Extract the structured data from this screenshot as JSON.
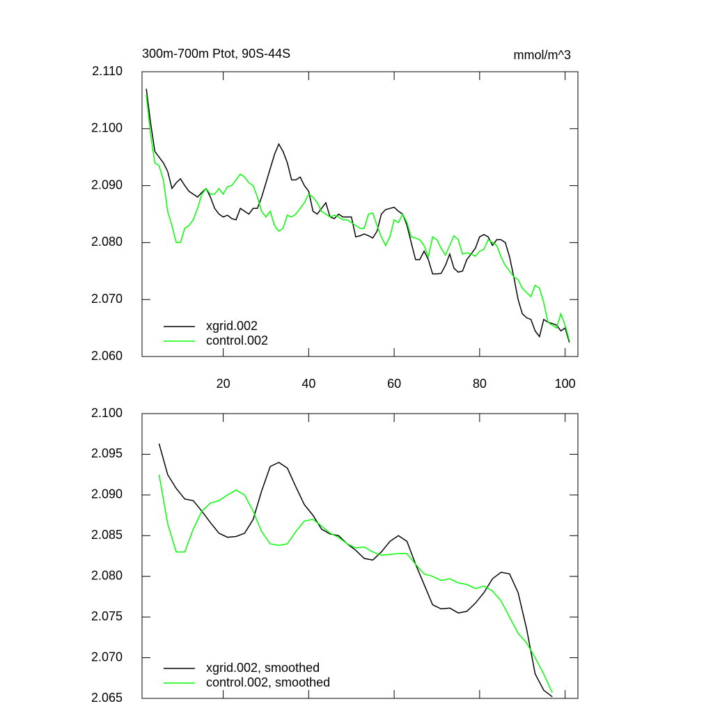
{
  "chart_data": [
    {
      "type": "line",
      "title": "300m-700m Ptot, 90S-44S",
      "units": "mmol/m^3",
      "x": [
        2,
        3,
        4,
        5,
        6,
        7,
        8,
        9,
        10,
        11,
        12,
        13,
        14,
        15,
        16,
        17,
        18,
        19,
        20,
        21,
        22,
        23,
        24,
        25,
        26,
        27,
        28,
        29,
        30,
        31,
        32,
        33,
        34,
        35,
        36,
        37,
        38,
        39,
        40,
        41,
        42,
        43,
        44,
        45,
        46,
        47,
        48,
        49,
        50,
        51,
        52,
        53,
        54,
        55,
        56,
        57,
        58,
        59,
        60,
        61,
        62,
        63,
        64,
        65,
        66,
        67,
        68,
        69,
        70,
        71,
        72,
        73,
        74,
        75,
        76,
        77,
        78,
        79,
        80,
        81,
        82,
        83,
        84,
        85,
        86,
        87,
        88,
        89,
        90,
        91,
        92,
        93,
        94,
        95,
        96,
        97,
        98,
        99,
        100,
        101
      ],
      "xlim": [
        1,
        103
      ],
      "xticks": [
        20,
        40,
        60,
        80,
        100
      ],
      "ylim": [
        2.06,
        2.11
      ],
      "yticks": [
        {
          "value": 2.06,
          "label": "2.060"
        },
        {
          "value": 2.07,
          "label": "2.070"
        },
        {
          "value": 2.08,
          "label": "2.080"
        },
        {
          "value": 2.09,
          "label": "2.090"
        },
        {
          "value": 2.1,
          "label": "2.100"
        },
        {
          "value": 2.11,
          "label": "2.110"
        }
      ],
      "series": [
        {
          "name": "xgrid.002",
          "color": "#000000",
          "values": [
            2.107,
            2.101,
            2.096,
            2.095,
            2.094,
            2.0925,
            2.0895,
            2.0905,
            2.0912,
            2.09,
            2.089,
            2.0885,
            2.088,
            2.0888,
            2.0895,
            2.088,
            2.086,
            2.085,
            2.0845,
            2.0848,
            2.0842,
            2.084,
            2.086,
            2.0855,
            2.085,
            2.086,
            2.086,
            2.088,
            2.0905,
            2.093,
            2.0955,
            2.0973,
            2.096,
            2.094,
            2.091,
            2.091,
            2.0915,
            2.09,
            2.089,
            2.0855,
            2.085,
            2.086,
            2.087,
            2.0845,
            2.0842,
            2.085,
            2.0845,
            2.0845,
            2.0845,
            2.081,
            2.0812,
            2.0815,
            2.0812,
            2.0808,
            2.082,
            2.085,
            2.0858,
            2.086,
            2.0862,
            2.0855,
            2.085,
            2.083,
            2.08,
            2.077,
            2.077,
            2.0785,
            2.077,
            2.0745,
            2.0745,
            2.0746,
            2.076,
            2.078,
            2.0755,
            2.0748,
            2.075,
            2.077,
            2.078,
            2.079,
            2.081,
            2.0814,
            2.081,
            2.0795,
            2.0805,
            2.0805,
            2.08,
            2.0775,
            2.074,
            2.07,
            2.0675,
            2.0668,
            2.0665,
            2.0645,
            2.0635,
            2.0665,
            2.066,
            2.0658,
            2.0655,
            2.0645,
            2.065,
            2.0625
          ]
        },
        {
          "name": "control.002",
          "color": "#00ff00",
          "values": [
            2.106,
            2.099,
            2.094,
            2.0935,
            2.091,
            2.0855,
            2.083,
            2.08,
            2.08,
            2.0825,
            2.083,
            2.084,
            2.086,
            2.0885,
            2.0895,
            2.0885,
            2.0885,
            2.0895,
            2.0885,
            2.0898,
            2.09,
            2.091,
            2.092,
            2.0915,
            2.0905,
            2.09,
            2.088,
            2.0855,
            2.0845,
            2.0855,
            2.083,
            2.082,
            2.0825,
            2.0848,
            2.0845,
            2.085,
            2.086,
            2.087,
            2.0885,
            2.088,
            2.087,
            2.0855,
            2.085,
            2.0845,
            2.0848,
            2.0845,
            2.084,
            2.084,
            2.0835,
            2.083,
            2.0825,
            2.0825,
            2.085,
            2.0852,
            2.083,
            2.081,
            2.0795,
            2.081,
            2.084,
            2.0835,
            2.085,
            2.0835,
            2.081,
            2.0808,
            2.0805,
            2.0795,
            2.0775,
            2.081,
            2.0805,
            2.079,
            2.0778,
            2.0795,
            2.0812,
            2.0805,
            2.078,
            2.0782,
            2.078,
            2.0776,
            2.0785,
            2.0788,
            2.0805,
            2.08,
            2.0795,
            2.0775,
            2.076,
            2.075,
            2.074,
            2.0735,
            2.072,
            2.0712,
            2.0705,
            2.0725,
            2.072,
            2.0695,
            2.066,
            2.0655,
            2.065,
            2.0675,
            2.0655,
            2.0628
          ]
        }
      ]
    },
    {
      "type": "line",
      "x": [
        5,
        7,
        9,
        11,
        13,
        15,
        17,
        19,
        21,
        23,
        25,
        27,
        29,
        31,
        33,
        35,
        37,
        39,
        41,
        43,
        45,
        47,
        49,
        51,
        53,
        55,
        57,
        59,
        61,
        63,
        65,
        67,
        69,
        71,
        73,
        75,
        77,
        79,
        81,
        83,
        85,
        87,
        89,
        91,
        93,
        95,
        97
      ],
      "xlim": [
        1,
        103
      ],
      "xticks": [
        20,
        40,
        60,
        80,
        100
      ],
      "ylim": [
        2.065,
        2.1
      ],
      "yticks": [
        2.065,
        {
          "value": 2.07,
          "label": "2.070"
        },
        2.075,
        {
          "value": 2.08,
          "label": "2.080"
        },
        2.085,
        {
          "value": 2.09,
          "label": "2.090"
        },
        2.095,
        {
          "value": 2.1,
          "label": "2.100"
        }
      ],
      "series": [
        {
          "name": "xgrid.002, smoothed",
          "color": "#000000",
          "values": [
            2.0963,
            2.0925,
            2.0908,
            2.0895,
            2.0893,
            2.088,
            2.0866,
            2.0853,
            2.0848,
            2.0849,
            2.0853,
            2.087,
            2.0905,
            2.0935,
            2.094,
            2.0933,
            2.091,
            2.0888,
            2.0875,
            2.0858,
            2.0852,
            2.085,
            2.084,
            2.0832,
            2.0822,
            2.082,
            2.083,
            2.0843,
            2.085,
            2.0843,
            2.0815,
            2.079,
            2.0765,
            2.076,
            2.0761,
            2.0755,
            2.0757,
            2.0767,
            2.078,
            2.0797,
            2.0805,
            2.0803,
            2.078,
            2.0735,
            2.068,
            2.066,
            2.0652
          ]
        },
        {
          "name": "control.002, smoothed",
          "color": "#00ff00",
          "values": [
            2.0925,
            2.0865,
            2.083,
            2.083,
            2.0858,
            2.088,
            2.089,
            2.0893,
            2.09,
            2.0906,
            2.09,
            2.088,
            2.0855,
            2.084,
            2.0838,
            2.084,
            2.0855,
            2.0868,
            2.087,
            2.0862,
            2.0853,
            2.0848,
            2.084,
            2.0835,
            2.0836,
            2.083,
            2.0826,
            2.0827,
            2.0828,
            2.0828,
            2.0815,
            2.0803,
            2.08,
            2.0795,
            2.0797,
            2.0792,
            2.079,
            2.0785,
            2.0788,
            2.0782,
            2.077,
            2.075,
            2.073,
            2.0718,
            2.07,
            2.068,
            2.0657
          ]
        }
      ]
    }
  ]
}
